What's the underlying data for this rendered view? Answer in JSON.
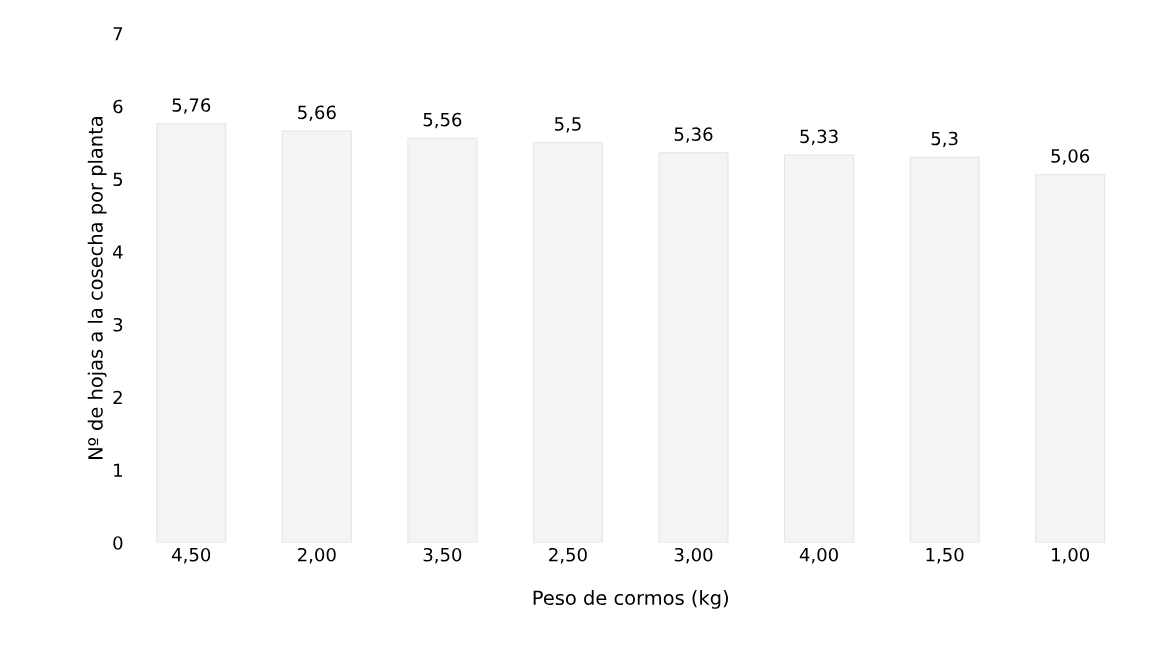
{
  "chart_data": {
    "type": "bar",
    "xlabel": "Peso de cormos (kg)",
    "ylabel": "Nº de hojas a la cosecha por planta",
    "categories": [
      "4,50",
      "2,00",
      "3,50",
      "2,50",
      "3,00",
      "4,00",
      "1,50",
      "1,00"
    ],
    "values": [
      5.76,
      5.66,
      5.56,
      5.5,
      5.36,
      5.33,
      5.3,
      5.06
    ],
    "value_labels": [
      "5,76",
      "5,66",
      "5,56",
      "5,5",
      "5,36",
      "5,33",
      "5,3",
      "5,06"
    ],
    "color": "#f4f4f4",
    "ylim": [
      0,
      7
    ],
    "yticks": [
      0,
      1,
      2,
      3,
      4,
      5,
      6,
      7
    ],
    "grid": false,
    "legend": false
  }
}
